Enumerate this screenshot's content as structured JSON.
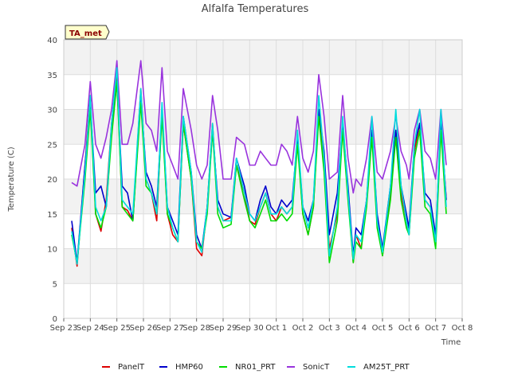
{
  "chart_data": {
    "type": "line",
    "title": "Alfalfa Temperatures",
    "xlabel": "Time",
    "ylabel": "Temperature (C)",
    "badge": "TA_met",
    "ylim": [
      0,
      40
    ],
    "yticks": [
      0,
      5,
      10,
      15,
      20,
      25,
      30,
      35,
      40
    ],
    "xlim": [
      0,
      15
    ],
    "xticks": [
      {
        "label": "Sep 23",
        "x": 0
      },
      {
        "label": "Sep 24",
        "x": 1
      },
      {
        "label": "Sep 25",
        "x": 2
      },
      {
        "label": "Sep 26",
        "x": 3
      },
      {
        "label": "Sep 27",
        "x": 4
      },
      {
        "label": "Sep 28",
        "x": 5
      },
      {
        "label": "Sep 29",
        "x": 6
      },
      {
        "label": "Sep 30",
        "x": 7
      },
      {
        "label": "Oct 1",
        "x": 8
      },
      {
        "label": "Oct 2",
        "x": 9
      },
      {
        "label": "Oct 3",
        "x": 10
      },
      {
        "label": "Oct 4",
        "x": 11
      },
      {
        "label": "Oct 5",
        "x": 12
      },
      {
        "label": "Oct 6",
        "x": 13
      },
      {
        "label": "Oct 7",
        "x": 14
      },
      {
        "label": "Oct 8",
        "x": 15
      }
    ],
    "grid": true,
    "legend_position": "bottom",
    "series": [
      {
        "name": "PanelT",
        "color": "#dd0000",
        "x": [
          0.3,
          0.5,
          0.8,
          1.0,
          1.2,
          1.4,
          1.6,
          1.8,
          2.0,
          2.2,
          2.4,
          2.6,
          2.9,
          3.1,
          3.3,
          3.5,
          3.7,
          3.9,
          4.1,
          4.3,
          4.5,
          4.8,
          5.0,
          5.2,
          5.4,
          5.6,
          5.8,
          6.0,
          6.3,
          6.5,
          6.8,
          7.0,
          7.2,
          7.4,
          7.6,
          7.8,
          8.0,
          8.2,
          8.4,
          8.6,
          8.8,
          9.0,
          9.2,
          9.4,
          9.6,
          9.8,
          10.0,
          10.3,
          10.5,
          10.7,
          10.9,
          11.0,
          11.2,
          11.4,
          11.6,
          11.8,
          12.0,
          12.3,
          12.5,
          12.7,
          12.9,
          13.0,
          13.2,
          13.4,
          13.6,
          13.8,
          14.0,
          14.2,
          14.4
        ],
        "y": [
          13,
          7.5,
          22,
          32,
          15,
          12.5,
          17,
          28,
          35,
          16,
          15.5,
          14,
          33,
          20,
          18,
          14,
          30,
          15,
          12,
          11,
          28,
          20,
          10,
          9,
          16,
          28,
          16,
          14,
          14.5,
          22,
          18,
          14,
          13.5,
          16,
          18,
          15,
          14,
          16,
          15,
          16,
          26,
          15,
          12,
          16,
          30,
          22,
          10,
          15,
          28,
          18,
          8,
          12,
          10,
          17,
          27,
          14,
          9,
          18,
          27,
          18,
          14,
          12,
          24,
          28,
          17,
          16,
          11,
          28,
          17
        ]
      },
      {
        "name": "HMP60",
        "color": "#0000cc",
        "x": [
          0.3,
          0.5,
          0.8,
          1.0,
          1.2,
          1.4,
          1.6,
          1.8,
          2.0,
          2.2,
          2.4,
          2.6,
          2.9,
          3.1,
          3.3,
          3.5,
          3.7,
          3.9,
          4.1,
          4.3,
          4.5,
          4.8,
          5.0,
          5.2,
          5.4,
          5.6,
          5.8,
          6.0,
          6.3,
          6.5,
          6.8,
          7.0,
          7.2,
          7.4,
          7.6,
          7.8,
          8.0,
          8.2,
          8.4,
          8.6,
          8.8,
          9.0,
          9.2,
          9.4,
          9.6,
          9.8,
          10.0,
          10.3,
          10.5,
          10.7,
          10.9,
          11.0,
          11.2,
          11.4,
          11.6,
          11.8,
          12.0,
          12.3,
          12.5,
          12.7,
          12.9,
          13.0,
          13.2,
          13.4,
          13.6,
          13.8,
          14.0,
          14.2,
          14.4
        ],
        "y": [
          14,
          8,
          22,
          31,
          18,
          19,
          16,
          27,
          34,
          19,
          18,
          14,
          32,
          21,
          19,
          16,
          30,
          16,
          14,
          12,
          29,
          21,
          12,
          10,
          16,
          27,
          17,
          15,
          14.5,
          23,
          19,
          15,
          14,
          17,
          19,
          16,
          15,
          17,
          16,
          17,
          26,
          16,
          14,
          17,
          30,
          24,
          12,
          18,
          28,
          19,
          9,
          13,
          12,
          17,
          27,
          15,
          10,
          19,
          27,
          19,
          15,
          13,
          25,
          28,
          18,
          17,
          12,
          28,
          17
        ]
      },
      {
        "name": "NR01_PRT",
        "color": "#00dd00",
        "x": [
          0.3,
          0.5,
          0.8,
          1.0,
          1.2,
          1.4,
          1.6,
          1.8,
          2.0,
          2.2,
          2.4,
          2.6,
          2.9,
          3.1,
          3.3,
          3.5,
          3.7,
          3.9,
          4.1,
          4.3,
          4.5,
          4.8,
          5.0,
          5.2,
          5.4,
          5.6,
          5.8,
          6.0,
          6.3,
          6.5,
          6.8,
          7.0,
          7.2,
          7.4,
          7.6,
          7.8,
          8.0,
          8.2,
          8.4,
          8.6,
          8.8,
          9.0,
          9.2,
          9.4,
          9.6,
          9.8,
          10.0,
          10.3,
          10.5,
          10.7,
          10.9,
          11.0,
          11.2,
          11.4,
          11.6,
          11.8,
          12.0,
          12.3,
          12.5,
          12.7,
          12.9,
          13.0,
          13.2,
          13.4,
          13.6,
          13.8,
          14.0,
          14.2,
          14.4
        ],
        "y": [
          12,
          8,
          20,
          30,
          15,
          13,
          16,
          26,
          34,
          16,
          15,
          14,
          31,
          19,
          18,
          15,
          29,
          15,
          13,
          11,
          28,
          20,
          11,
          10,
          15,
          27,
          15,
          13,
          13.5,
          22,
          17,
          14,
          13,
          15,
          17,
          14,
          14,
          15,
          14,
          15,
          25,
          15,
          12,
          16,
          29,
          21,
          8,
          14,
          27,
          17,
          8,
          11,
          10,
          16,
          26,
          13,
          9,
          17,
          26,
          17,
          13,
          12,
          23,
          27,
          16,
          15,
          10,
          27,
          15
        ]
      },
      {
        "name": "SonicT",
        "color": "#9933dd",
        "x": [
          0.3,
          0.5,
          0.8,
          1.0,
          1.2,
          1.4,
          1.6,
          1.8,
          2.0,
          2.2,
          2.4,
          2.6,
          2.9,
          3.1,
          3.3,
          3.5,
          3.7,
          3.9,
          4.1,
          4.3,
          4.5,
          4.8,
          5.0,
          5.2,
          5.4,
          5.6,
          5.8,
          6.0,
          6.3,
          6.5,
          6.8,
          7.0,
          7.2,
          7.4,
          7.6,
          7.8,
          8.0,
          8.2,
          8.4,
          8.6,
          8.8,
          9.0,
          9.2,
          9.4,
          9.6,
          9.8,
          10.0,
          10.3,
          10.5,
          10.7,
          10.9,
          11.0,
          11.2,
          11.4,
          11.6,
          11.8,
          12.0,
          12.3,
          12.5,
          12.7,
          12.9,
          13.0,
          13.2,
          13.4,
          13.6,
          13.8,
          14.0,
          14.2,
          14.4
        ],
        "y": [
          19.5,
          19,
          25,
          34,
          25,
          23,
          26,
          30,
          37,
          25,
          25,
          28,
          37,
          28,
          27,
          24,
          36,
          24,
          22,
          20,
          33,
          27,
          22,
          20,
          22,
          32,
          27,
          20,
          20,
          26,
          25,
          22,
          22,
          24,
          23,
          22,
          22,
          25,
          24,
          22,
          29,
          23,
          21,
          24,
          35,
          29,
          20,
          21,
          32,
          23,
          18,
          20,
          19,
          23,
          29,
          21,
          20,
          24,
          29,
          24,
          22,
          20,
          27,
          30,
          24,
          23,
          20,
          30,
          22
        ]
      },
      {
        "name": "AM25T_PRT",
        "color": "#00dddd",
        "x": [
          0.3,
          0.5,
          0.8,
          1.0,
          1.2,
          1.4,
          1.6,
          1.8,
          2.0,
          2.2,
          2.4,
          2.6,
          2.9,
          3.1,
          3.3,
          3.5,
          3.7,
          3.9,
          4.1,
          4.3,
          4.5,
          4.8,
          5.0,
          5.2,
          5.4,
          5.6,
          5.8,
          6.0,
          6.3,
          6.5,
          6.8,
          7.0,
          7.2,
          7.4,
          7.6,
          7.8,
          8.0,
          8.2,
          8.4,
          8.6,
          8.8,
          9.0,
          9.2,
          9.4,
          9.6,
          9.8,
          10.0,
          10.3,
          10.5,
          10.7,
          10.9,
          11.0,
          11.2,
          11.4,
          11.6,
          11.8,
          12.0,
          12.3,
          12.5,
          12.7,
          12.9,
          13.0,
          13.2,
          13.4,
          13.6,
          13.8,
          14.0,
          14.2,
          14.4
        ],
        "y": [
          12.5,
          7.8,
          21,
          32,
          16,
          14,
          16,
          28,
          36,
          17,
          16,
          15,
          33,
          20,
          18,
          15,
          31,
          16,
          13,
          11,
          29,
          21,
          11,
          9.5,
          16,
          28,
          16,
          14,
          14,
          23,
          18,
          15,
          14,
          16,
          18,
          15,
          15,
          16,
          15,
          16,
          27,
          16,
          13,
          17,
          32,
          23,
          9,
          16,
          29,
          18,
          8.5,
          12,
          11,
          17,
          29,
          14,
          9.5,
          19,
          30,
          19,
          14,
          12,
          25,
          30,
          17,
          16,
          11,
          30,
          16
        ]
      }
    ]
  }
}
